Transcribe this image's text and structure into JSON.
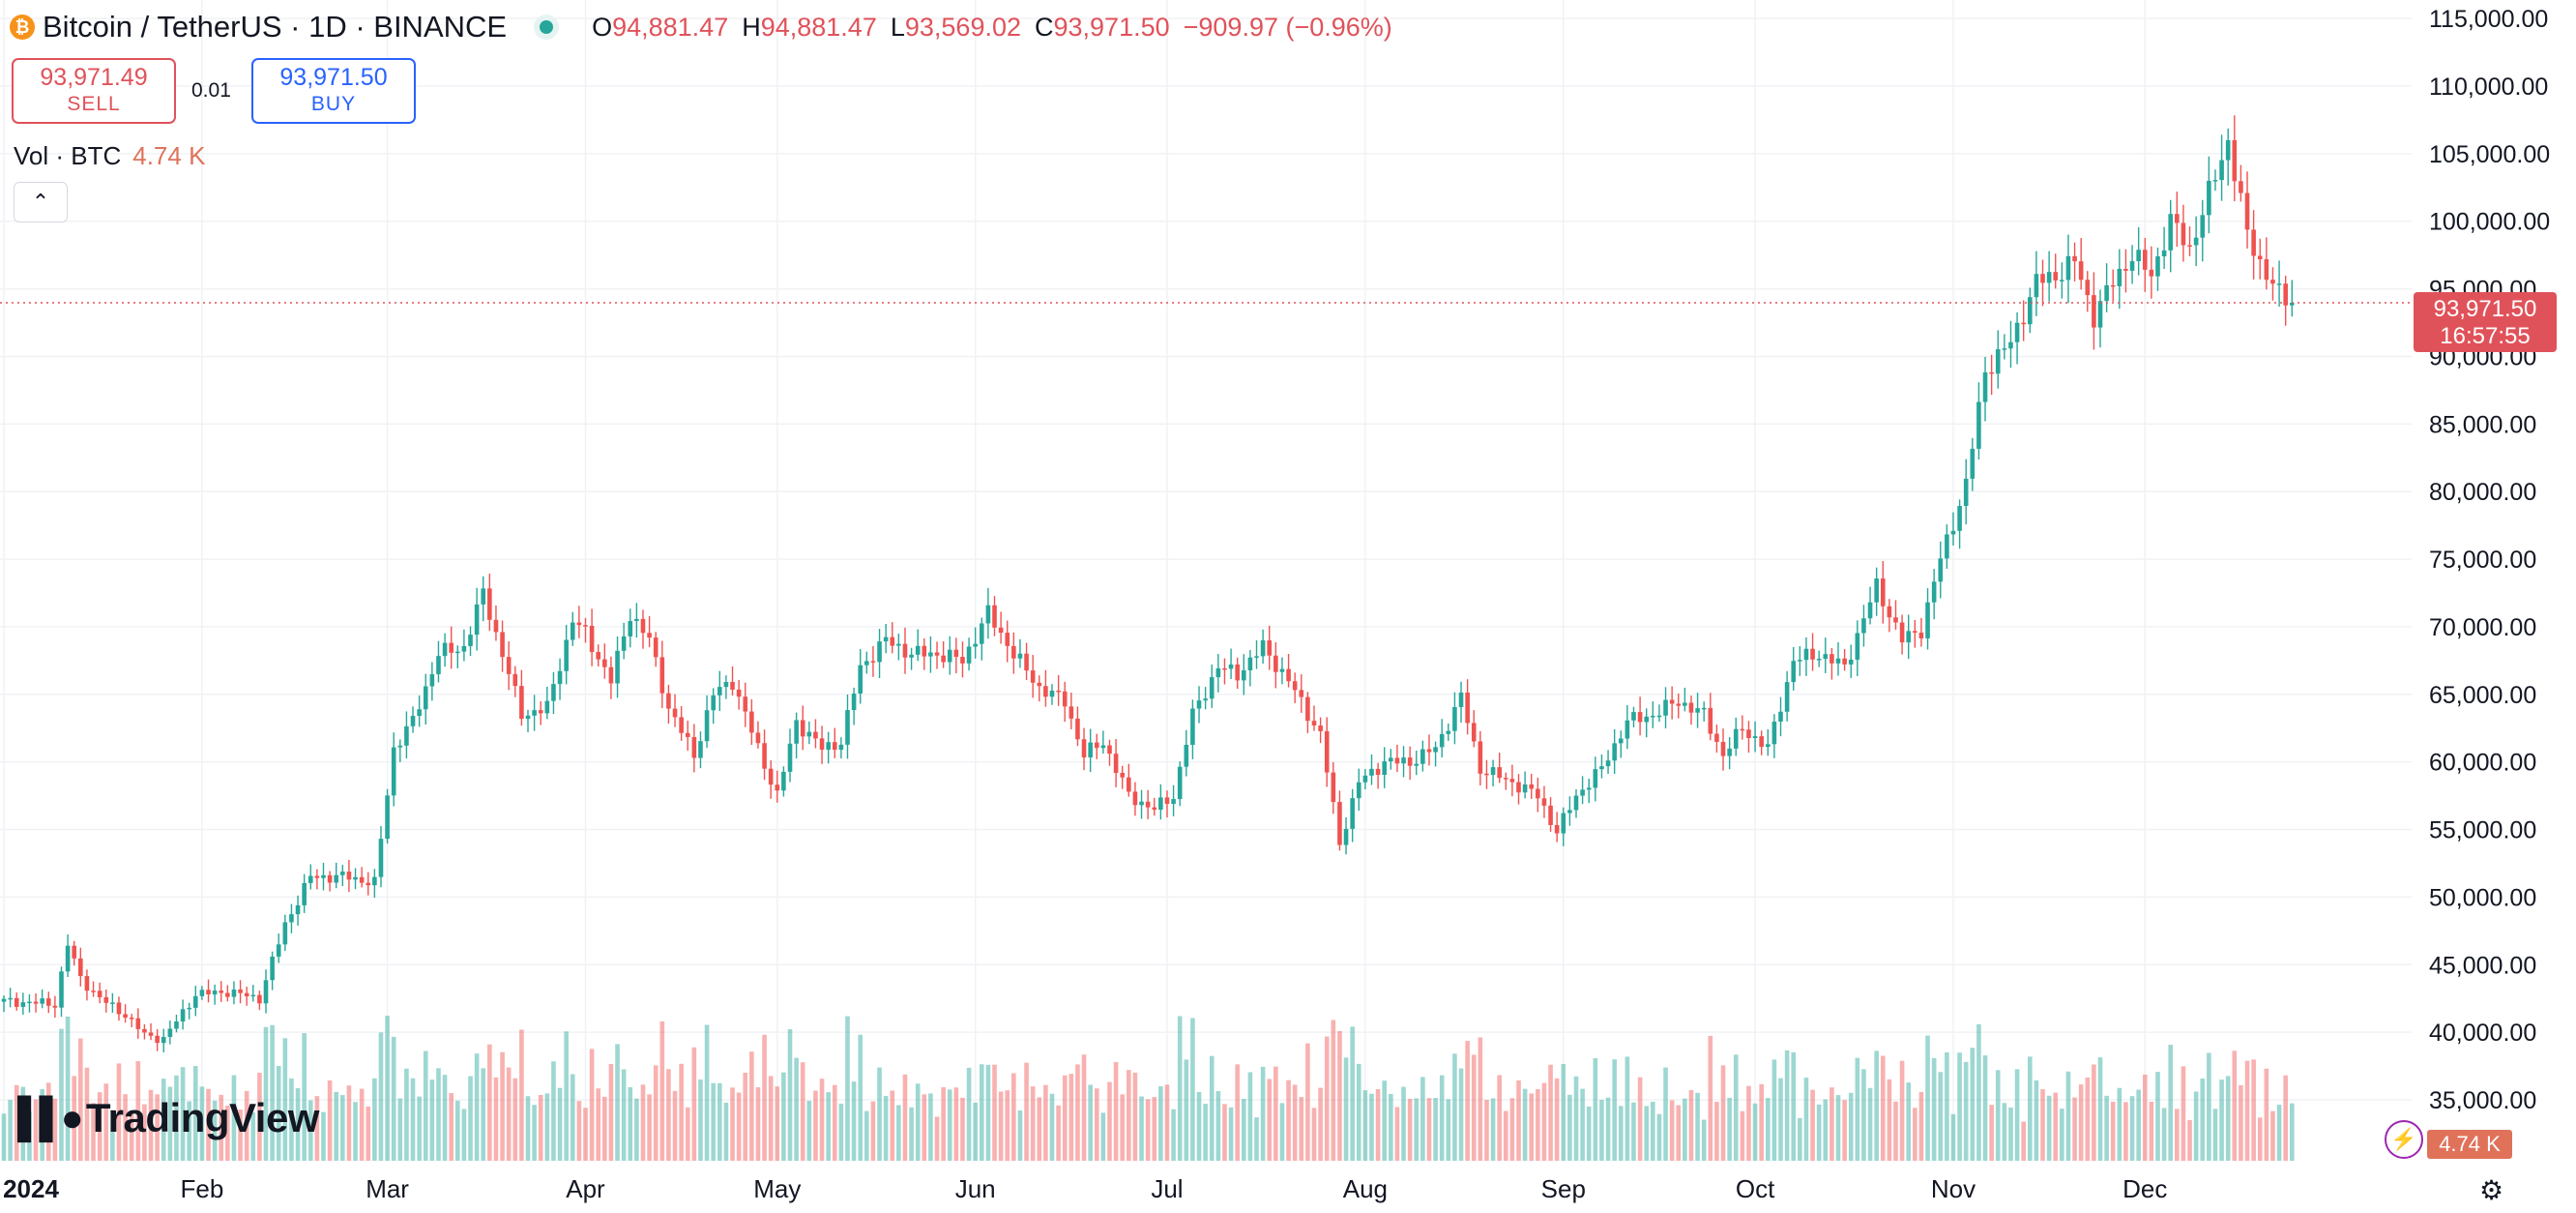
{
  "header": {
    "title": "Bitcoin / TetherUS · 1D · BINANCE",
    "coin_icon": "bitcoin-icon",
    "open_label": "O",
    "open": "94,881.47",
    "high_label": "H",
    "high": "94,881.47",
    "low_label": "L",
    "low": "93,569.02",
    "close_label": "C",
    "close": "93,971.50",
    "change": "−909.97 (−0.96%)"
  },
  "trade": {
    "sell_price": "93,971.49",
    "sell_label": "SELL",
    "spread": "0.01",
    "buy_price": "93,971.50",
    "buy_label": "BUY"
  },
  "volume_legend": {
    "label": "Vol · BTC",
    "value": "4.74 K"
  },
  "logo": "TradingView",
  "price_tag": {
    "price": "93,971.50",
    "countdown": "16:57:55"
  },
  "volume_tag": "4.74 K",
  "colors": {
    "up": "#26a69a",
    "down": "#ef5350",
    "last_price": "#e0525a"
  },
  "chart_data": {
    "type": "candlestick",
    "y_ticks": [
      "115,000.00",
      "110,000.00",
      "105,000.00",
      "100,000.00",
      "95,000.00",
      "90,000.00",
      "85,000.00",
      "80,000.00",
      "75,000.00",
      "70,000.00",
      "65,000.00",
      "60,000.00",
      "55,000.00",
      "50,000.00",
      "45,000.00",
      "40,000.00",
      "35,000.00"
    ],
    "y_range": [
      33000,
      117000
    ],
    "x_ticks": [
      "2024",
      "Feb",
      "Mar",
      "Apr",
      "May",
      "Jun",
      "Jul",
      "Aug",
      "Sep",
      "Oct",
      "Nov",
      "Dec"
    ],
    "x_tick_days": [
      0,
      31,
      60,
      91,
      121,
      152,
      182,
      213,
      244,
      274,
      305,
      335
    ],
    "last_price": 93971.5,
    "series_close": [
      [
        0,
        42300
      ],
      [
        8,
        42100
      ],
      [
        10,
        46500
      ],
      [
        12,
        44000
      ],
      [
        15,
        42500
      ],
      [
        19,
        41300
      ],
      [
        22,
        39800
      ],
      [
        25,
        39500
      ],
      [
        30,
        42800
      ],
      [
        35,
        43000
      ],
      [
        40,
        42500
      ],
      [
        44,
        48000
      ],
      [
        48,
        51500
      ],
      [
        54,
        51500
      ],
      [
        58,
        51000
      ],
      [
        61,
        61000
      ],
      [
        64,
        63000
      ],
      [
        68,
        68000
      ],
      [
        72,
        68500
      ],
      [
        75,
        72500
      ],
      [
        78,
        68000
      ],
      [
        81,
        63500
      ],
      [
        85,
        64000
      ],
      [
        89,
        70500
      ],
      [
        91,
        69500
      ],
      [
        95,
        66000
      ],
      [
        98,
        71000
      ],
      [
        101,
        69000
      ],
      [
        104,
        64000
      ],
      [
        108,
        60500
      ],
      [
        111,
        65000
      ],
      [
        114,
        66000
      ],
      [
        118,
        61000
      ],
      [
        121,
        57500
      ],
      [
        124,
        63000
      ],
      [
        128,
        61000
      ],
      [
        131,
        61500
      ],
      [
        134,
        67000
      ],
      [
        138,
        69000
      ],
      [
        142,
        68000
      ],
      [
        146,
        68000
      ],
      [
        150,
        67500
      ],
      [
        154,
        71000
      ],
      [
        158,
        68000
      ],
      [
        162,
        65500
      ],
      [
        166,
        64500
      ],
      [
        169,
        60500
      ],
      [
        172,
        61500
      ],
      [
        176,
        57500
      ],
      [
        180,
        56500
      ],
      [
        183,
        57500
      ],
      [
        186,
        63500
      ],
      [
        190,
        67000
      ],
      [
        193,
        66500
      ],
      [
        197,
        68500
      ],
      [
        201,
        66000
      ],
      [
        206,
        62000
      ],
      [
        209,
        54000
      ],
      [
        212,
        58500
      ],
      [
        216,
        60000
      ],
      [
        220,
        60000
      ],
      [
        224,
        61000
      ],
      [
        228,
        64800
      ],
      [
        231,
        59500
      ],
      [
        236,
        58500
      ],
      [
        240,
        57500
      ],
      [
        243,
        54800
      ],
      [
        246,
        57500
      ],
      [
        250,
        59500
      ],
      [
        254,
        63000
      ],
      [
        258,
        63500
      ],
      [
        262,
        64500
      ],
      [
        266,
        63500
      ],
      [
        269,
        60500
      ],
      [
        272,
        62500
      ],
      [
        276,
        61000
      ],
      [
        280,
        67500
      ],
      [
        284,
        68000
      ],
      [
        288,
        67000
      ],
      [
        293,
        73000
      ],
      [
        297,
        69000
      ],
      [
        300,
        69800
      ],
      [
        303,
        75000
      ],
      [
        307,
        80500
      ],
      [
        310,
        89000
      ],
      [
        314,
        91000
      ],
      [
        318,
        95500
      ],
      [
        321,
        96000
      ],
      [
        324,
        97000
      ],
      [
        327,
        93000
      ],
      [
        330,
        95500
      ],
      [
        333,
        97500
      ],
      [
        336,
        96000
      ],
      [
        339,
        100000
      ],
      [
        342,
        98000
      ],
      [
        345,
        102000
      ],
      [
        348,
        106000
      ],
      [
        351,
        99000
      ],
      [
        353,
        97000
      ],
      [
        356,
        94500
      ],
      [
        358,
        93971
      ]
    ]
  }
}
